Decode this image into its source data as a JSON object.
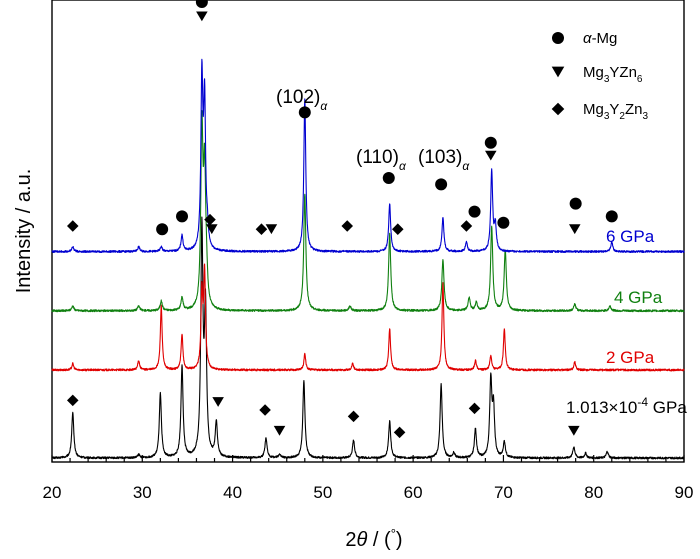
{
  "chart_data": {
    "type": "line",
    "xlabel": "2θ / (°)",
    "ylabel": "Intensity / a.u.",
    "xlim": [
      20,
      90
    ],
    "xticks": [
      20,
      30,
      40,
      50,
      60,
      70,
      80,
      90
    ],
    "grid": false,
    "legend_position": "top-right",
    "legend": [
      {
        "symbol": "circle",
        "label": "α-Mg"
      },
      {
        "symbol": "triangle-down",
        "label": "Mg3YZn6"
      },
      {
        "symbol": "diamond",
        "label": "Mg3Y2Zn3"
      }
    ],
    "series": [
      {
        "name": "1.013×10⁻⁴ GPa",
        "color": "#000000",
        "baseline": 0.0,
        "peaks": [
          [
            22.3,
            0.28
          ],
          [
            29.6,
            0.02
          ],
          [
            32.0,
            0.4
          ],
          [
            34.4,
            0.57
          ],
          [
            36.6,
            1.4
          ],
          [
            37.0,
            0.9
          ],
          [
            38.2,
            0.22
          ],
          [
            43.7,
            0.12
          ],
          [
            45.2,
            0.02
          ],
          [
            47.9,
            0.48
          ],
          [
            53.4,
            0.11
          ],
          [
            57.4,
            0.23
          ],
          [
            63.1,
            0.46
          ],
          [
            64.5,
            0.03
          ],
          [
            66.9,
            0.18
          ],
          [
            68.6,
            0.48
          ],
          [
            68.9,
            0.3
          ],
          [
            70.1,
            0.1
          ],
          [
            77.8,
            0.07
          ],
          [
            79.1,
            0.03
          ],
          [
            81.5,
            0.04
          ]
        ]
      },
      {
        "name": "2 GPa",
        "color": "#e00000",
        "baseline": 0.55,
        "peaks": [
          [
            22.3,
            0.04
          ],
          [
            29.6,
            0.06
          ],
          [
            32.1,
            0.4
          ],
          [
            34.4,
            0.22
          ],
          [
            36.6,
            0.47
          ],
          [
            36.9,
            0.6
          ],
          [
            48.0,
            0.1
          ],
          [
            53.3,
            0.04
          ],
          [
            57.4,
            0.26
          ],
          [
            63.3,
            0.55
          ],
          [
            66.9,
            0.06
          ],
          [
            68.6,
            0.09
          ],
          [
            70.1,
            0.26
          ],
          [
            77.9,
            0.05
          ]
        ]
      },
      {
        "name": "4 GPa",
        "color": "#108010",
        "baseline": 0.92,
        "peaks": [
          [
            22.3,
            0.03
          ],
          [
            29.6,
            0.03
          ],
          [
            32.1,
            0.06
          ],
          [
            34.4,
            0.08
          ],
          [
            36.6,
            1.1
          ],
          [
            36.9,
            0.8
          ],
          [
            37.1,
            0.16
          ],
          [
            48.0,
            0.73
          ],
          [
            53.0,
            0.03
          ],
          [
            57.4,
            0.48
          ],
          [
            63.3,
            0.32
          ],
          [
            66.2,
            0.08
          ],
          [
            67.0,
            0.05
          ],
          [
            68.7,
            0.53
          ],
          [
            70.2,
            0.38
          ],
          [
            77.9,
            0.04
          ],
          [
            81.8,
            0.03
          ]
        ]
      },
      {
        "name": "6 GPa",
        "color": "#0000d0",
        "baseline": 1.29,
        "peaks": [
          [
            22.3,
            0.03
          ],
          [
            29.6,
            0.03
          ],
          [
            32.1,
            0.03
          ],
          [
            34.4,
            0.1
          ],
          [
            36.6,
            1.05
          ],
          [
            36.9,
            0.9
          ],
          [
            37.2,
            0.1
          ],
          [
            48.0,
            0.95
          ],
          [
            57.4,
            0.3
          ],
          [
            63.3,
            0.21
          ],
          [
            65.9,
            0.06
          ],
          [
            68.7,
            0.5
          ],
          [
            69.1,
            0.16
          ],
          [
            82.0,
            0.06
          ]
        ]
      }
    ],
    "markers": [
      {
        "symbol": "circle",
        "x": 36.6,
        "y": 2.85
      },
      {
        "symbol": "triangle-down",
        "x": 36.6,
        "y": 2.76
      },
      {
        "symbol": "diamond",
        "x": 22.3,
        "y": 1.45
      },
      {
        "symbol": "circle",
        "x": 32.2,
        "y": 1.43
      },
      {
        "symbol": "circle",
        "x": 34.4,
        "y": 1.51
      },
      {
        "symbol": "diamond",
        "x": 37.5,
        "y": 1.49
      },
      {
        "symbol": "triangle-down",
        "x": 37.7,
        "y": 1.43
      },
      {
        "symbol": "diamond",
        "x": 43.2,
        "y": 1.43
      },
      {
        "symbol": "triangle-down",
        "x": 44.3,
        "y": 1.43
      },
      {
        "symbol": "circle",
        "x": 48.0,
        "y": 2.16
      },
      {
        "symbol": "diamond",
        "x": 52.7,
        "y": 1.45
      },
      {
        "symbol": "circle",
        "x": 57.3,
        "y": 1.75
      },
      {
        "symbol": "diamond",
        "x": 58.3,
        "y": 1.43
      },
      {
        "symbol": "circle",
        "x": 63.1,
        "y": 1.71
      },
      {
        "symbol": "diamond",
        "x": 65.9,
        "y": 1.45
      },
      {
        "symbol": "circle",
        "x": 66.8,
        "y": 1.54
      },
      {
        "symbol": "circle",
        "x": 68.6,
        "y": 1.97
      },
      {
        "symbol": "triangle-down",
        "x": 68.6,
        "y": 1.89
      },
      {
        "symbol": "circle",
        "x": 70.0,
        "y": 1.47
      },
      {
        "symbol": "circle",
        "x": 78.0,
        "y": 1.59
      },
      {
        "symbol": "triangle-down",
        "x": 77.9,
        "y": 1.43
      },
      {
        "symbol": "circle",
        "x": 82.0,
        "y": 1.51
      },
      {
        "symbol": "diamond",
        "x": 22.3,
        "y": 0.36
      },
      {
        "symbol": "triangle-down",
        "x": 38.4,
        "y": 0.35
      },
      {
        "symbol": "diamond",
        "x": 43.6,
        "y": 0.3
      },
      {
        "symbol": "triangle-down",
        "x": 45.2,
        "y": 0.17
      },
      {
        "symbol": "diamond",
        "x": 53.4,
        "y": 0.26
      },
      {
        "symbol": "diamond",
        "x": 58.5,
        "y": 0.16
      },
      {
        "symbol": "diamond",
        "x": 66.8,
        "y": 0.31
      },
      {
        "symbol": "triangle-down",
        "x": 77.8,
        "y": 0.17
      }
    ],
    "peak_labels": [
      {
        "text": "(102)",
        "sub": "α",
        "x": 48.0
      },
      {
        "text": "(110)",
        "sub": "α",
        "x": 58.6
      },
      {
        "text": "(103)",
        "sub": "α",
        "x": 66.2
      }
    ]
  }
}
